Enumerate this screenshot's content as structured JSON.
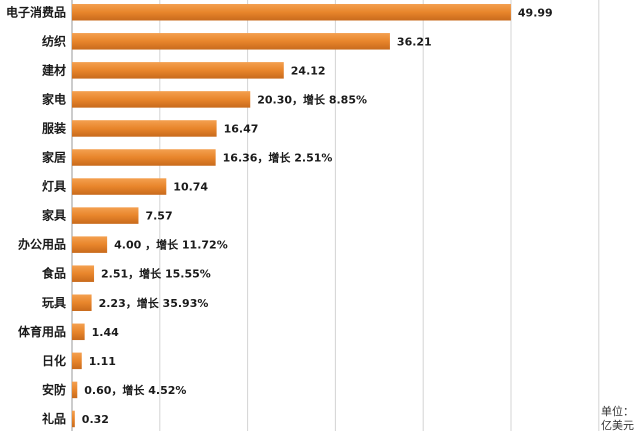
{
  "chart_data": {
    "type": "bar",
    "orientation": "horizontal",
    "categories": [
      "电子消费品",
      "纺织",
      "建材",
      "家电",
      "服装",
      "家居",
      "灯具",
      "家具",
      "办公用品",
      "食品",
      "玩具",
      "体育用品",
      "日化",
      "安防",
      "礼品"
    ],
    "values": [
      49.99,
      36.21,
      24.12,
      20.3,
      16.47,
      16.36,
      10.74,
      7.57,
      4.0,
      2.51,
      2.23,
      1.44,
      1.11,
      0.6,
      0.32
    ],
    "data_labels": [
      "49.99",
      "36.21",
      "24.12",
      "20.30，增长 8.85%",
      "16.47",
      "16.36，增长 2.51%",
      "10.74",
      "7.57",
      "4.00 ，增长 11.72%",
      "2.51，增长 15.55%",
      "2.23，增长 35.93%",
      "1.44",
      "1.11",
      "0.60，增长 4.52%",
      "0.32"
    ],
    "xlim": [
      0,
      60
    ],
    "grid": true,
    "bar_color": "#E8852B",
    "unit_label": [
      "单位：",
      "亿美元"
    ]
  }
}
